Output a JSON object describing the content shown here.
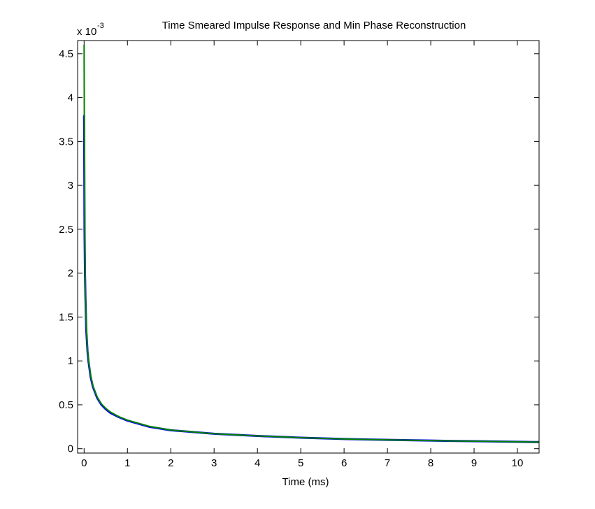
{
  "chart_data": {
    "type": "line",
    "title": "Time Smeared Impulse Response and Min Phase Reconstruction",
    "xlabel": "Time (ms)",
    "ylabel": "",
    "y_exponent_label": "x 10",
    "y_exponent_power": "-3",
    "xlim": [
      -0.15,
      10.5
    ],
    "ylim": [
      -0.05,
      4.65
    ],
    "xticks": [
      0,
      1,
      2,
      3,
      4,
      5,
      6,
      7,
      8,
      9,
      10
    ],
    "yticks": [
      0,
      0.5,
      1,
      1.5,
      2,
      2.5,
      3,
      3.5,
      4,
      4.5
    ],
    "ytick_labels": [
      "0",
      "0.5",
      "1",
      "1.5",
      "2",
      "2.5",
      "3",
      "3.5",
      "4",
      "4.5"
    ],
    "grid": false,
    "legend": "none",
    "series": [
      {
        "color": "#0000ff",
        "x": [
          0,
          0.01,
          0.02,
          0.03,
          0.05,
          0.08,
          0.1,
          0.15,
          0.2,
          0.3,
          0.4,
          0.5,
          0.6,
          0.8,
          1,
          1.5,
          2,
          3,
          4,
          5,
          6,
          7,
          8,
          9,
          10,
          10.5
        ],
        "y": [
          3.8,
          2.5,
          2.0,
          1.75,
          1.35,
          1.1,
          1.0,
          0.82,
          0.71,
          0.58,
          0.5,
          0.45,
          0.41,
          0.36,
          0.32,
          0.25,
          0.21,
          0.17,
          0.145,
          0.125,
          0.11,
          0.1,
          0.092,
          0.085,
          0.078,
          0.075
        ]
      },
      {
        "color": "#008000",
        "x": [
          0,
          0.005,
          0.01,
          0.02,
          0.03,
          0.05,
          0.08,
          0.1,
          0.15,
          0.2,
          0.3,
          0.4,
          0.5,
          0.6,
          0.8,
          1,
          1.5,
          2,
          3,
          4,
          5,
          6,
          7,
          8,
          9,
          10,
          10.5
        ],
        "y": [
          4.6,
          3.7,
          2.9,
          2.2,
          1.8,
          1.4,
          1.12,
          1.02,
          0.84,
          0.72,
          0.59,
          0.51,
          0.46,
          0.42,
          0.365,
          0.325,
          0.255,
          0.212,
          0.17,
          0.145,
          0.125,
          0.11,
          0.1,
          0.092,
          0.085,
          0.078,
          0.075
        ]
      }
    ]
  }
}
